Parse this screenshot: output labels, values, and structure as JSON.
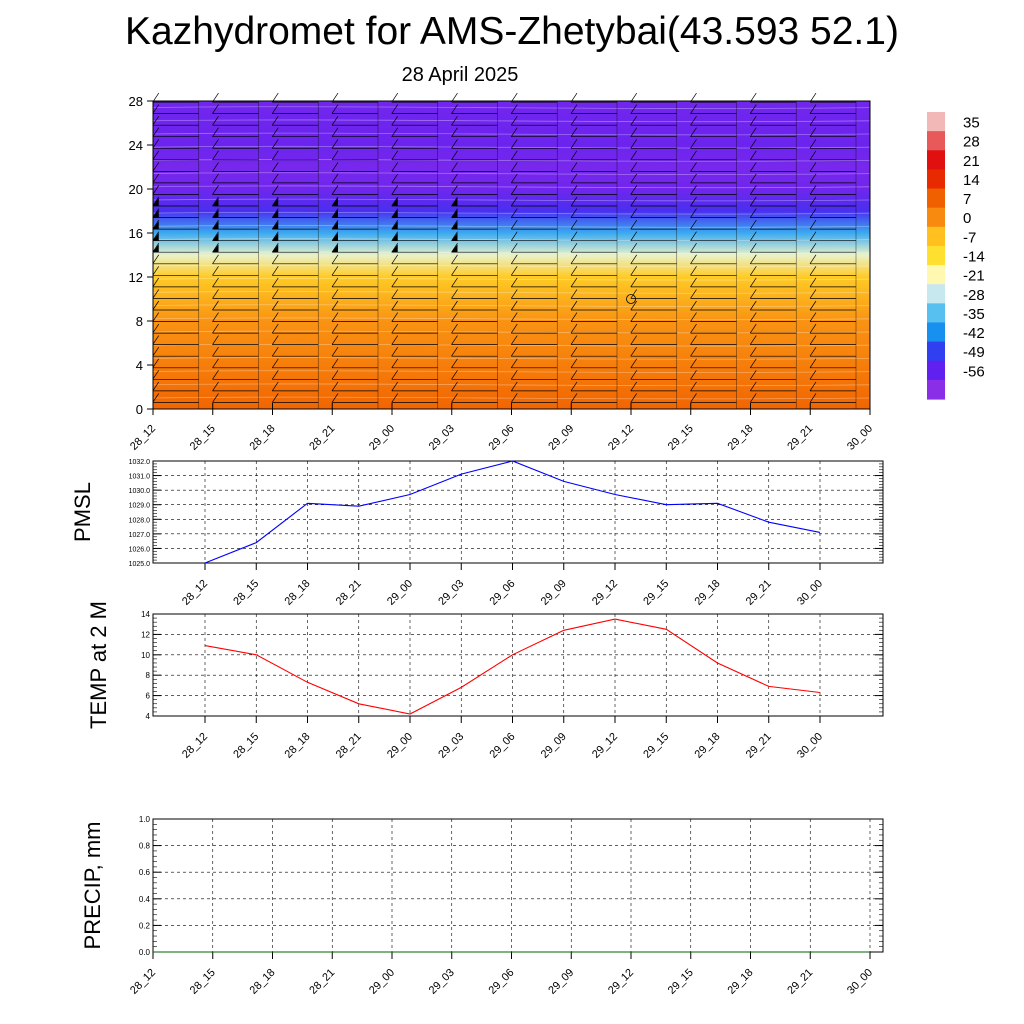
{
  "title": "Kazhydromet for AMS-Zhetybai(43.593 52.1)",
  "subtitle": "28 April 2025",
  "colorbar": {
    "labels": [
      "35",
      "28",
      "21",
      "14",
      "7",
      "0",
      "-7",
      "-14",
      "-21",
      "-28",
      "-35",
      "-42",
      "-49",
      "-56"
    ],
    "colors": [
      "#f2b8b8",
      "#e85a5a",
      "#e01010",
      "#e82a00",
      "#f06000",
      "#f88a10",
      "#ffc020",
      "#ffe030",
      "#fff8b0",
      "#c8e8f0",
      "#58c0f0",
      "#1890f0",
      "#3040f0",
      "#6020f0",
      "#8a2ee8"
    ]
  },
  "chart_data": [
    {
      "type": "heatmap",
      "title": "",
      "ylabel": "",
      "ylim": [
        0,
        28
      ],
      "yticks": [
        0,
        4,
        8,
        12,
        16,
        20,
        24,
        28
      ],
      "categories": [
        "28_12",
        "28_15",
        "28_18",
        "28_21",
        "29_00",
        "29_03",
        "29_06",
        "29_09",
        "29_12",
        "29_15",
        "29_18",
        "29_21",
        "30_00"
      ],
      "value_range": [
        -60,
        35
      ],
      "vertical_profile": [
        {
          "level": 0,
          "value": 7
        },
        {
          "level": 4,
          "value": 3
        },
        {
          "level": 8,
          "value": 0
        },
        {
          "level": 12,
          "value": -8
        },
        {
          "level": 14,
          "value": -22
        },
        {
          "level": 16,
          "value": -36
        },
        {
          "level": 18,
          "value": -50
        },
        {
          "level": 20,
          "value": -56
        },
        {
          "level": 22,
          "value": -57
        },
        {
          "level": 24,
          "value": -55
        },
        {
          "level": 28,
          "value": -56
        }
      ],
      "overlay": "wind barbs"
    },
    {
      "type": "line",
      "ylabel": "PMSL",
      "ylim": [
        1025.0,
        1032.0
      ],
      "yticks": [
        "1025.0",
        "1026.0",
        "1027.0",
        "1028.0",
        "1029.0",
        "1030.0",
        "1031.0",
        "1032.0"
      ],
      "categories": [
        "28_12",
        "28_15",
        "28_18",
        "28_21",
        "29_00",
        "29_03",
        "29_06",
        "29_09",
        "29_12",
        "29_15",
        "29_18",
        "29_21",
        "30_00"
      ],
      "series": [
        {
          "values": [
            1025.0,
            1026.4,
            1029.1,
            1028.9,
            1029.7,
            1031.1,
            1032.0,
            1030.6,
            1029.7,
            1029.0,
            1029.1,
            1027.8,
            1027.1
          ],
          "color": "#0000ff"
        }
      ],
      "grid": true
    },
    {
      "type": "line",
      "ylabel": "TEMP at 2 M",
      "ylim": [
        4,
        14
      ],
      "yticks": [
        "4",
        "6",
        "8",
        "10",
        "12",
        "14"
      ],
      "categories": [
        "28_12",
        "28_15",
        "28_18",
        "28_21",
        "29_00",
        "29_03",
        "29_06",
        "29_09",
        "29_12",
        "29_15",
        "29_18",
        "29_21",
        "30_00"
      ],
      "series": [
        {
          "values": [
            10.9,
            10.0,
            7.3,
            5.2,
            4.2,
            6.8,
            10.0,
            12.4,
            13.5,
            12.5,
            9.2,
            6.9,
            6.3
          ],
          "color": "#ff0000"
        }
      ],
      "grid": true
    },
    {
      "type": "line",
      "ylabel": "PRECIP, mm",
      "ylim": [
        0.0,
        1.0
      ],
      "yticks": [
        "0.0",
        "0.2",
        "0.4",
        "0.6",
        "0.8",
        "1.0"
      ],
      "categories": [
        "28_12",
        "28_15",
        "28_18",
        "28_21",
        "29_00",
        "29_03",
        "29_06",
        "29_09",
        "29_12",
        "29_15",
        "29_18",
        "29_21",
        "30_00"
      ],
      "series": [
        {
          "values": [
            0,
            0,
            0,
            0,
            0,
            0,
            0,
            0,
            0,
            0,
            0,
            0,
            0
          ],
          "color": "#006400"
        }
      ],
      "grid": true
    }
  ]
}
